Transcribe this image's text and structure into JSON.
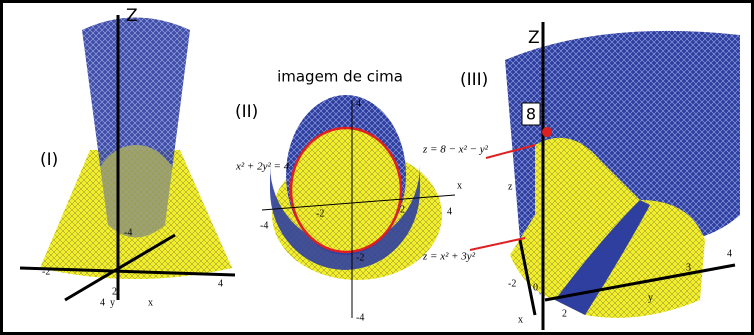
{
  "panel_1": {
    "label": "(I)",
    "axis_z": "Z",
    "ticks": [
      "-2",
      "-4",
      "2",
      "4",
      "4"
    ],
    "axis_y": "y",
    "axis_x": "x"
  },
  "panel_2": {
    "title": "imagem de cima",
    "label": "(II)",
    "equation": "x² + 2y² = 4",
    "ticks": [
      "4",
      "-4",
      "-2",
      "2",
      "4",
      "-2",
      "-4"
    ],
    "axis_x": "x"
  },
  "panel_3": {
    "label": "(III)",
    "axis_z": "Z",
    "height_marker": "8",
    "upper_surface": "z = 8 − x² − y²",
    "lower_surface": "z = x² + 3y²",
    "axis_z_small": "z",
    "ticks": [
      "-2",
      "0",
      "2",
      "3",
      "4"
    ],
    "axis_y": "y",
    "axis_x": "x"
  }
}
